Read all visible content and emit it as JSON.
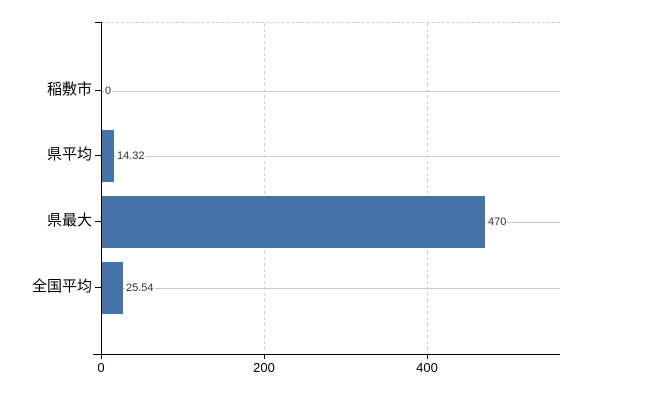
{
  "chart_data": {
    "type": "bar",
    "orientation": "horizontal",
    "title": "",
    "categories": [
      "稲敷市",
      "県平均",
      "県最大",
      "全国平均"
    ],
    "values": [
      0,
      14.32,
      470,
      25.54
    ],
    "value_labels": [
      "0",
      "14.32",
      "470",
      "25.54"
    ],
    "xticks": [
      0,
      200,
      400
    ],
    "xtick_labels": [
      "0",
      "200",
      "400"
    ],
    "xlim": [
      0,
      563
    ],
    "grid": true,
    "legend": false,
    "bar_color": "#4572a7"
  },
  "colors": {
    "bar": "#4572a7",
    "axis": "#000000",
    "category_gridline": "#c9c9c9",
    "tick_gridline": "#cccccc",
    "value_label_text": "#333333",
    "axis_label_text": "#000000",
    "background": "#ffffff"
  }
}
